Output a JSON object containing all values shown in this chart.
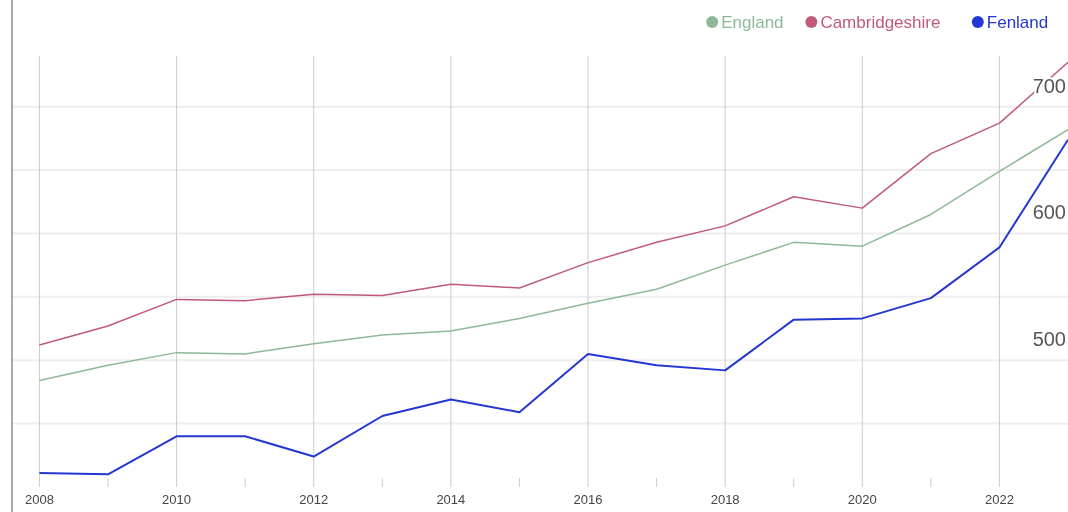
{
  "chart_data": {
    "type": "line",
    "x": [
      2008,
      2009,
      2010,
      2011,
      2012,
      2013,
      2014,
      2015,
      2016,
      2017,
      2018,
      2019,
      2020,
      2021,
      2022,
      2023
    ],
    "series": [
      {
        "name": "England",
        "color": "#8fb896",
        "values": [
          484,
          496,
          506,
          505,
          513,
          520,
          523,
          533,
          545,
          556,
          575,
          593,
          590,
          615,
          649,
          682
        ]
      },
      {
        "name": "Cambridgeshire",
        "color": "#c05a78",
        "values": [
          512,
          527,
          548,
          547,
          552,
          551,
          560,
          557,
          577,
          593,
          606,
          629,
          620,
          663,
          687,
          735
        ]
      },
      {
        "name": "Fenland",
        "color": "#2437d0",
        "values": [
          411,
          410,
          440,
          440,
          424,
          456,
          469,
          459,
          505,
          496,
          492,
          532,
          533,
          549,
          589,
          674
        ]
      }
    ],
    "xlim": [
      2007.6,
      2023
    ],
    "ylim": [
      400,
      740
    ],
    "xticks": [
      2008,
      {
        "value": 2009,
        "label": null
      },
      2010,
      {
        "value": 2011,
        "label": null
      },
      2012,
      {
        "value": 2013,
        "label": null
      },
      2014,
      {
        "value": 2015,
        "label": null
      },
      2016,
      {
        "value": 2017,
        "label": null
      },
      2018,
      {
        "value": 2019,
        "label": null
      },
      2020,
      {
        "value": 2021,
        "label": null
      },
      2022
    ],
    "yticks": [
      {
        "value": 450,
        "label": null
      },
      500,
      {
        "value": 550,
        "label": null
      },
      600,
      {
        "value": 650,
        "label": null
      },
      700
    ],
    "grid": true,
    "legend": "top right",
    "marker": "none",
    "line_style": "solid"
  }
}
